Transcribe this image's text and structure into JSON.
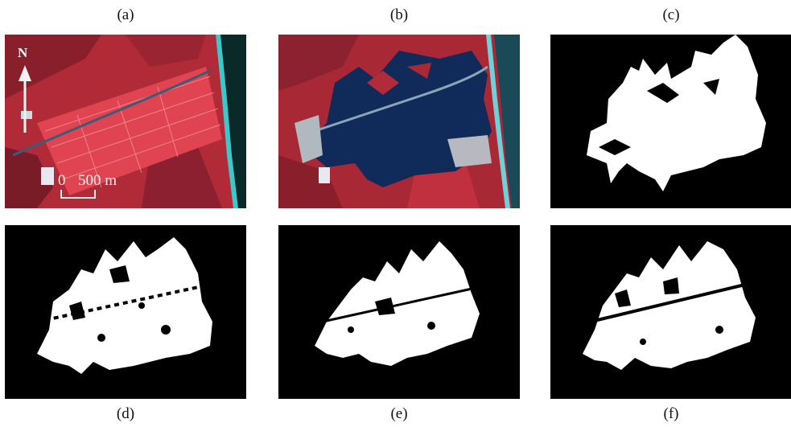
{
  "panels": {
    "a": {
      "label": "(a)"
    },
    "b": {
      "label": "(b)"
    },
    "c": {
      "label": "(c)"
    },
    "d": {
      "label": "(d)"
    },
    "e": {
      "label": "(e)"
    },
    "f": {
      "label": "(f)"
    }
  },
  "north_arrow": {
    "label": "N"
  },
  "scale_bar": {
    "zero_label": "0",
    "distance_label": "500 m"
  },
  "colors": {
    "vegetation_red": "#c8323c",
    "field_red": "#e04450",
    "water_dark": "#102a5a",
    "coast_cyan": "#3cc8c8",
    "mask_white": "#ffffff",
    "mask_black": "#000000"
  }
}
